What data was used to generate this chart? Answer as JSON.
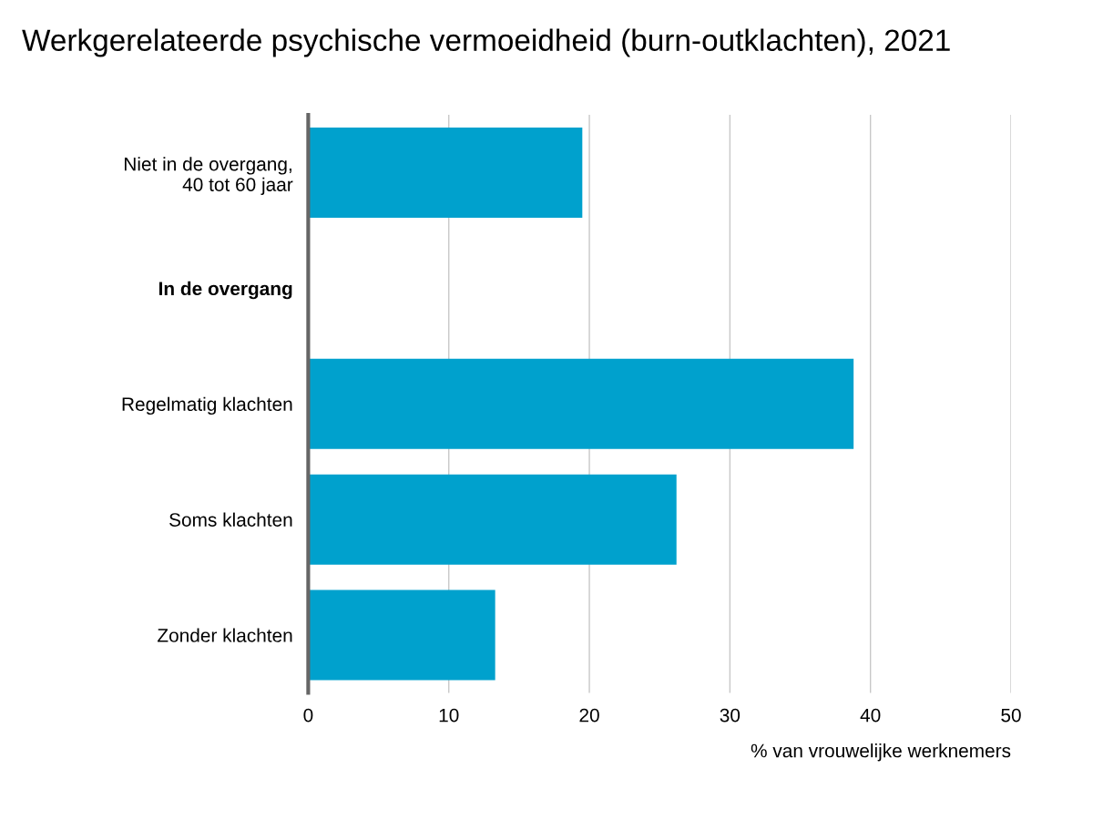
{
  "chart_data": {
    "type": "bar",
    "orientation": "horizontal",
    "title": "Werkgerelateerde psychische vermoeidheid (burn-outklachten), 2021",
    "categories": [
      "Niet in de overgang,\n40 tot 60 jaar",
      "In de overgang",
      "Regelmatig klachten",
      "Soms klachten",
      "Zonder klachten"
    ],
    "values": [
      19.5,
      null,
      38.8,
      26.2,
      13.3
    ],
    "color": "#00a1cd",
    "xlim": [
      0,
      50
    ],
    "xticks": [
      0,
      10,
      20,
      30,
      40,
      50
    ],
    "xlabel": "% van vrouwelijke werknemers",
    "grid": "x"
  }
}
